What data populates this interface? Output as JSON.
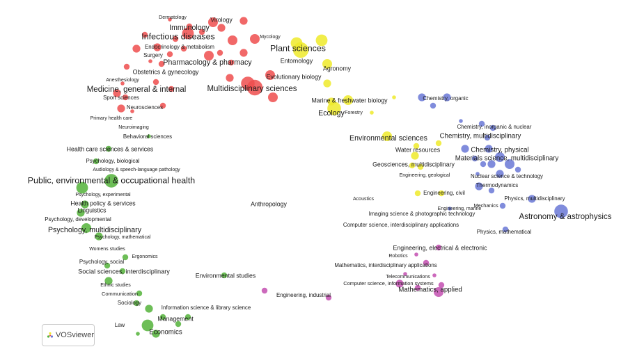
{
  "colors": {
    "red": "#ee4d4d",
    "yellow": "#eeea2a",
    "blue": "#6a78d6",
    "green": "#54b33a",
    "purple": "#c34fb0"
  },
  "logo": {
    "text": "VOSviewer",
    "icon": "vosviewer-logo-icon"
  },
  "nodes": [
    {
      "id": "r1",
      "c": "red",
      "s": 2
    },
    {
      "id": "r2",
      "c": "red",
      "s": 3
    },
    {
      "id": "r3",
      "c": "red",
      "s": 5
    },
    {
      "id": "r4",
      "c": "red",
      "s": 4
    },
    {
      "id": "r5",
      "c": "red",
      "s": 3
    },
    {
      "id": "r6",
      "c": "red",
      "s": 4
    },
    {
      "id": "r7",
      "c": "red",
      "s": 5
    },
    {
      "id": "r8",
      "c": "red",
      "s": 3
    },
    {
      "id": "r9",
      "c": "red",
      "s": 4
    },
    {
      "id": "r10",
      "c": "red",
      "s": 3
    },
    {
      "id": "r11",
      "c": "red",
      "s": 6
    },
    {
      "id": "r12",
      "c": "red",
      "s": 4
    },
    {
      "id": "r13",
      "c": "red",
      "s": 3
    },
    {
      "id": "r14",
      "c": "red",
      "s": 3
    },
    {
      "id": "r15",
      "c": "red",
      "s": 5
    },
    {
      "id": "r16",
      "c": "red",
      "s": 3
    },
    {
      "id": "r17",
      "c": "red",
      "s": 4
    },
    {
      "id": "r18",
      "c": "red",
      "s": 3
    },
    {
      "id": "r19",
      "c": "red",
      "s": 2
    },
    {
      "id": "r20",
      "c": "red",
      "s": 3
    },
    {
      "id": "r21",
      "c": "red",
      "s": 7
    },
    {
      "id": "r22",
      "c": "red",
      "s": 5
    },
    {
      "id": "r23",
      "c": "red",
      "s": 4
    },
    {
      "id": "r24",
      "c": "red",
      "s": 8
    },
    {
      "id": "r25",
      "c": "red",
      "s": 5
    },
    {
      "id": "r26",
      "c": "red",
      "s": 3
    },
    {
      "id": "r27",
      "c": "red",
      "s": 2
    },
    {
      "id": "r28",
      "c": "red",
      "s": 3
    },
    {
      "id": "r29",
      "c": "red",
      "s": 4
    },
    {
      "id": "r30",
      "c": "red",
      "s": 3
    },
    {
      "id": "r31",
      "c": "red",
      "s": 2
    },
    {
      "id": "r32",
      "c": "red",
      "s": 3
    },
    {
      "id": "r33",
      "c": "red",
      "s": 4
    },
    {
      "id": "r34",
      "c": "red",
      "s": 3
    },
    {
      "id": "r35",
      "c": "red",
      "s": 5
    },
    {
      "id": "y1",
      "c": "yellow",
      "s": 6
    },
    {
      "id": "y2",
      "c": "yellow",
      "s": 8
    },
    {
      "id": "y3",
      "c": "yellow",
      "s": 6
    },
    {
      "id": "y4",
      "c": "yellow",
      "s": 5
    },
    {
      "id": "y5",
      "c": "yellow",
      "s": 7
    },
    {
      "id": "y6",
      "c": "yellow",
      "s": 4
    },
    {
      "id": "y7",
      "c": "yellow",
      "s": 5
    },
    {
      "id": "y8",
      "c": "yellow",
      "s": 4
    },
    {
      "id": "y9",
      "c": "yellow",
      "s": 5
    },
    {
      "id": "y10",
      "c": "yellow",
      "s": 4
    },
    {
      "id": "y11",
      "c": "yellow",
      "s": 3
    },
    {
      "id": "y12",
      "c": "yellow",
      "s": 3
    },
    {
      "id": "y13",
      "c": "yellow",
      "s": 3
    },
    {
      "id": "y14",
      "c": "yellow",
      "s": 2
    },
    {
      "id": "y15",
      "c": "yellow",
      "s": 3
    },
    {
      "id": "y16",
      "c": "yellow",
      "s": 3
    },
    {
      "id": "y17",
      "c": "yellow",
      "s": 3
    },
    {
      "id": "y18",
      "c": "yellow",
      "s": 2
    },
    {
      "id": "b1",
      "c": "blue",
      "s": 4
    },
    {
      "id": "b2",
      "c": "blue",
      "s": 3
    },
    {
      "id": "b3",
      "c": "blue",
      "s": 4
    },
    {
      "id": "b4",
      "c": "blue",
      "s": 3
    },
    {
      "id": "b5",
      "c": "blue",
      "s": 3
    },
    {
      "id": "b6",
      "c": "blue",
      "s": 4
    },
    {
      "id": "b7",
      "c": "blue",
      "s": 5
    },
    {
      "id": "b8",
      "c": "blue",
      "s": 4
    },
    {
      "id": "b9",
      "c": "blue",
      "s": 5
    },
    {
      "id": "b10",
      "c": "blue",
      "s": 3
    },
    {
      "id": "b11",
      "c": "blue",
      "s": 3
    },
    {
      "id": "b12",
      "c": "blue",
      "s": 4
    },
    {
      "id": "b13",
      "c": "blue",
      "s": 3
    },
    {
      "id": "b14",
      "c": "blue",
      "s": 4
    },
    {
      "id": "b15",
      "c": "blue",
      "s": 3
    },
    {
      "id": "b16",
      "c": "blue",
      "s": 7
    },
    {
      "id": "b17",
      "c": "blue",
      "s": 4
    },
    {
      "id": "b18",
      "c": "blue",
      "s": 3
    },
    {
      "id": "b19",
      "c": "blue",
      "s": 2
    },
    {
      "id": "b20",
      "c": "blue",
      "s": 2
    },
    {
      "id": "b21",
      "c": "blue",
      "s": 3
    },
    {
      "id": "b22",
      "c": "blue",
      "s": 4
    },
    {
      "id": "b23",
      "c": "blue",
      "s": 3
    },
    {
      "id": "b24",
      "c": "blue",
      "s": 2
    },
    {
      "id": "g1",
      "c": "green",
      "s": 3
    },
    {
      "id": "g2",
      "c": "green",
      "s": 3
    },
    {
      "id": "g3",
      "c": "green",
      "s": 7
    },
    {
      "id": "g4",
      "c": "green",
      "s": 6
    },
    {
      "id": "g5",
      "c": "green",
      "s": 4
    },
    {
      "id": "g6",
      "c": "green",
      "s": 4
    },
    {
      "id": "g7",
      "c": "green",
      "s": 5
    },
    {
      "id": "g8",
      "c": "green",
      "s": 4
    },
    {
      "id": "g9",
      "c": "green",
      "s": 3
    },
    {
      "id": "g10",
      "c": "green",
      "s": 3
    },
    {
      "id": "g11",
      "c": "green",
      "s": 4
    },
    {
      "id": "g12",
      "c": "green",
      "s": 3
    },
    {
      "id": "g13",
      "c": "green",
      "s": 3
    },
    {
      "id": "g14",
      "c": "green",
      "s": 4
    },
    {
      "id": "g15",
      "c": "green",
      "s": 3
    },
    {
      "id": "g16",
      "c": "green",
      "s": 6
    },
    {
      "id": "g17",
      "c": "green",
      "s": 4
    },
    {
      "id": "g18",
      "c": "green",
      "s": 3
    },
    {
      "id": "g19",
      "c": "green",
      "s": 3
    },
    {
      "id": "g20",
      "c": "green",
      "s": 3
    },
    {
      "id": "g21",
      "c": "green",
      "s": 2
    },
    {
      "id": "g22",
      "c": "green",
      "s": 3
    },
    {
      "id": "g23",
      "c": "green",
      "s": 2
    },
    {
      "id": "p1",
      "c": "purple",
      "s": 3
    },
    {
      "id": "p2",
      "c": "purple",
      "s": 3
    },
    {
      "id": "p3",
      "c": "purple",
      "s": 4
    },
    {
      "id": "p4",
      "c": "purple",
      "s": 3
    },
    {
      "id": "p5",
      "c": "purple",
      "s": 2
    },
    {
      "id": "p6",
      "c": "purple",
      "s": 5
    },
    {
      "id": "p7",
      "c": "purple",
      "s": 3
    },
    {
      "id": "p8",
      "c": "purple",
      "s": 2
    },
    {
      "id": "p9",
      "c": "purple",
      "s": 3
    },
    {
      "id": "p10",
      "c": "purple",
      "s": 2
    },
    {
      "id": "p11",
      "c": "purple",
      "s": 3
    }
  ],
  "labels": [
    {
      "text": "Dermatology",
      "s": 1
    },
    {
      "text": "Virology",
      "s": 2
    },
    {
      "text": "Immunology",
      "s": 3
    },
    {
      "text": "Infectious diseases",
      "s": 4
    },
    {
      "text": "Mycology",
      "s": 1
    },
    {
      "text": "Endocrinology & metabolism",
      "s": 1.5
    },
    {
      "text": "Surgery",
      "s": 1.5
    },
    {
      "text": "Plant sciences",
      "s": 4
    },
    {
      "text": "Entomology",
      "s": 2
    },
    {
      "text": "Pharmacology & pharmacy",
      "s": 3
    },
    {
      "text": "Agronomy",
      "s": 2
    },
    {
      "text": "Obstetrics & gynecology",
      "s": 2
    },
    {
      "text": "Evolutionary biology",
      "s": 2
    },
    {
      "text": "Anesthesiology",
      "s": 1
    },
    {
      "text": "Medicine, general & internal",
      "s": 3.5
    },
    {
      "text": "Multidisciplinary sciences",
      "s": 3.5
    },
    {
      "text": "Sport sciences",
      "s": 1.5
    },
    {
      "text": "Marine & freshwater biology",
      "s": 2
    },
    {
      "text": "Neurosciences",
      "s": 1.5
    },
    {
      "text": "Chemistry, organic",
      "s": 1.5
    },
    {
      "text": "Ecology",
      "s": 3
    },
    {
      "text": "Forestry",
      "s": 1
    },
    {
      "text": "Primary health care",
      "s": 1
    },
    {
      "text": "Neuroimaging",
      "s": 1
    },
    {
      "text": "Chemistry, inorganic & nuclear",
      "s": 1.5
    },
    {
      "text": "Behavioral sciences",
      "s": 1.5
    },
    {
      "text": "Chemistry, multidisciplinary",
      "s": 2.5
    },
    {
      "text": "Environmental sciences",
      "s": 3
    },
    {
      "text": "Health care sciences & services",
      "s": 2
    },
    {
      "text": "Water resources",
      "s": 2
    },
    {
      "text": "Chemistry, physical",
      "s": 2.5
    },
    {
      "text": "Materials science, multidisciplinary",
      "s": 2.5
    },
    {
      "text": "Psychology, biological",
      "s": 1.5
    },
    {
      "text": "Geosciences, multidisciplinary",
      "s": 2
    },
    {
      "text": "Audiology & speech-language pathology",
      "s": 1
    },
    {
      "text": "Engineering, geological",
      "s": 1
    },
    {
      "text": "Nuclear science & technology",
      "s": 1.5
    },
    {
      "text": "Public, environmental & occupational health",
      "s": 4
    },
    {
      "text": "Thermodynamics",
      "s": 1.5
    },
    {
      "text": "Psychology, experimental",
      "s": 1
    },
    {
      "text": "Engineering, civil",
      "s": 1.5
    },
    {
      "text": "Acoustics",
      "s": 1
    },
    {
      "text": "Physics, multidisciplinary",
      "s": 1.5
    },
    {
      "text": "Health policy & services",
      "s": 2
    },
    {
      "text": "Anthropology",
      "s": 2
    },
    {
      "text": "Mechanics",
      "s": 1.2
    },
    {
      "text": "Engineering, marine",
      "s": 1
    },
    {
      "text": "Linguistics",
      "s": 2
    },
    {
      "text": "Imaging science & photographic technology",
      "s": 1.5
    },
    {
      "text": "Astronomy & astrophysics",
      "s": 3.5
    },
    {
      "text": "Psychology, developmental",
      "s": 1.5
    },
    {
      "text": "Computer science, interdisciplinary applications",
      "s": 1.5
    },
    {
      "text": "Psychology, multidisciplinary",
      "s": 3
    },
    {
      "text": "Physics, mathematical",
      "s": 1.5
    },
    {
      "text": "Psychology, mathematical",
      "s": 1
    },
    {
      "text": "Engineering, electrical & electronic",
      "s": 2
    },
    {
      "text": "Womens studies",
      "s": 1
    },
    {
      "text": "Robotics",
      "s": 1
    },
    {
      "text": "Ergonomics",
      "s": 1
    },
    {
      "text": "Psychology, social",
      "s": 1.5
    },
    {
      "text": "Mathematics, interdisciplinary applications",
      "s": 1.5
    },
    {
      "text": "Social sciences, interdisciplinary",
      "s": 2.2
    },
    {
      "text": "Telecommunications",
      "s": 1
    },
    {
      "text": "Environmental studies",
      "s": 2
    },
    {
      "text": "Computer science, information systems",
      "s": 1.2
    },
    {
      "text": "Ethnic studies",
      "s": 1
    },
    {
      "text": "Mathematics, applied",
      "s": 2.5
    },
    {
      "text": "Communication",
      "s": 1.3
    },
    {
      "text": "Engineering, industrial",
      "s": 1.5
    },
    {
      "text": "Sociology",
      "s": 1.5
    },
    {
      "text": "Information science & library science",
      "s": 1.5
    },
    {
      "text": "Management",
      "s": 2
    },
    {
      "text": "Law",
      "s": 1.5
    },
    {
      "text": "Economics",
      "s": 2.5
    }
  ]
}
